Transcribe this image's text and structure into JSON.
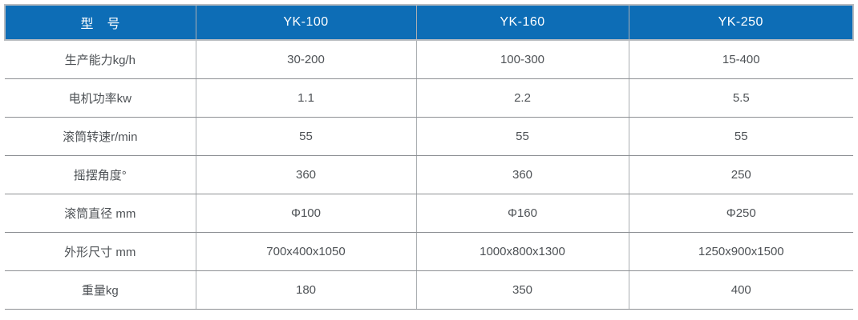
{
  "chart_data": {
    "type": "table",
    "title": "",
    "columns": [
      "型　号",
      "YK-100",
      "YK-160",
      "YK-250"
    ],
    "rows": [
      {
        "label": "生产能力kg/h",
        "values": [
          "30-200",
          "100-300",
          "15-400"
        ]
      },
      {
        "label": "电机功率kw",
        "values": [
          "1.1",
          "2.2",
          "5.5"
        ]
      },
      {
        "label": "滚筒转速r/min",
        "values": [
          "55",
          "55",
          "55"
        ]
      },
      {
        "label": "摇摆角度°",
        "values": [
          "360",
          "360",
          "250"
        ]
      },
      {
        "label": "滚筒直径 mm",
        "values": [
          "Φ100",
          "Φ160",
          "Φ250"
        ]
      },
      {
        "label": "外形尺寸 mm",
        "values": [
          "700x400x1050",
          "1000x800x1300",
          "1250x900x1500"
        ]
      },
      {
        "label": "重量kg",
        "values": [
          "180",
          "350",
          "400"
        ]
      }
    ]
  },
  "colors": {
    "header_bg": "#0d6db6",
    "header_text": "#ffffff",
    "header_border": "#b9bcc0",
    "row_line": "#8d9094",
    "col_line": "#aaaeb2",
    "body_text": "#4e5256"
  }
}
